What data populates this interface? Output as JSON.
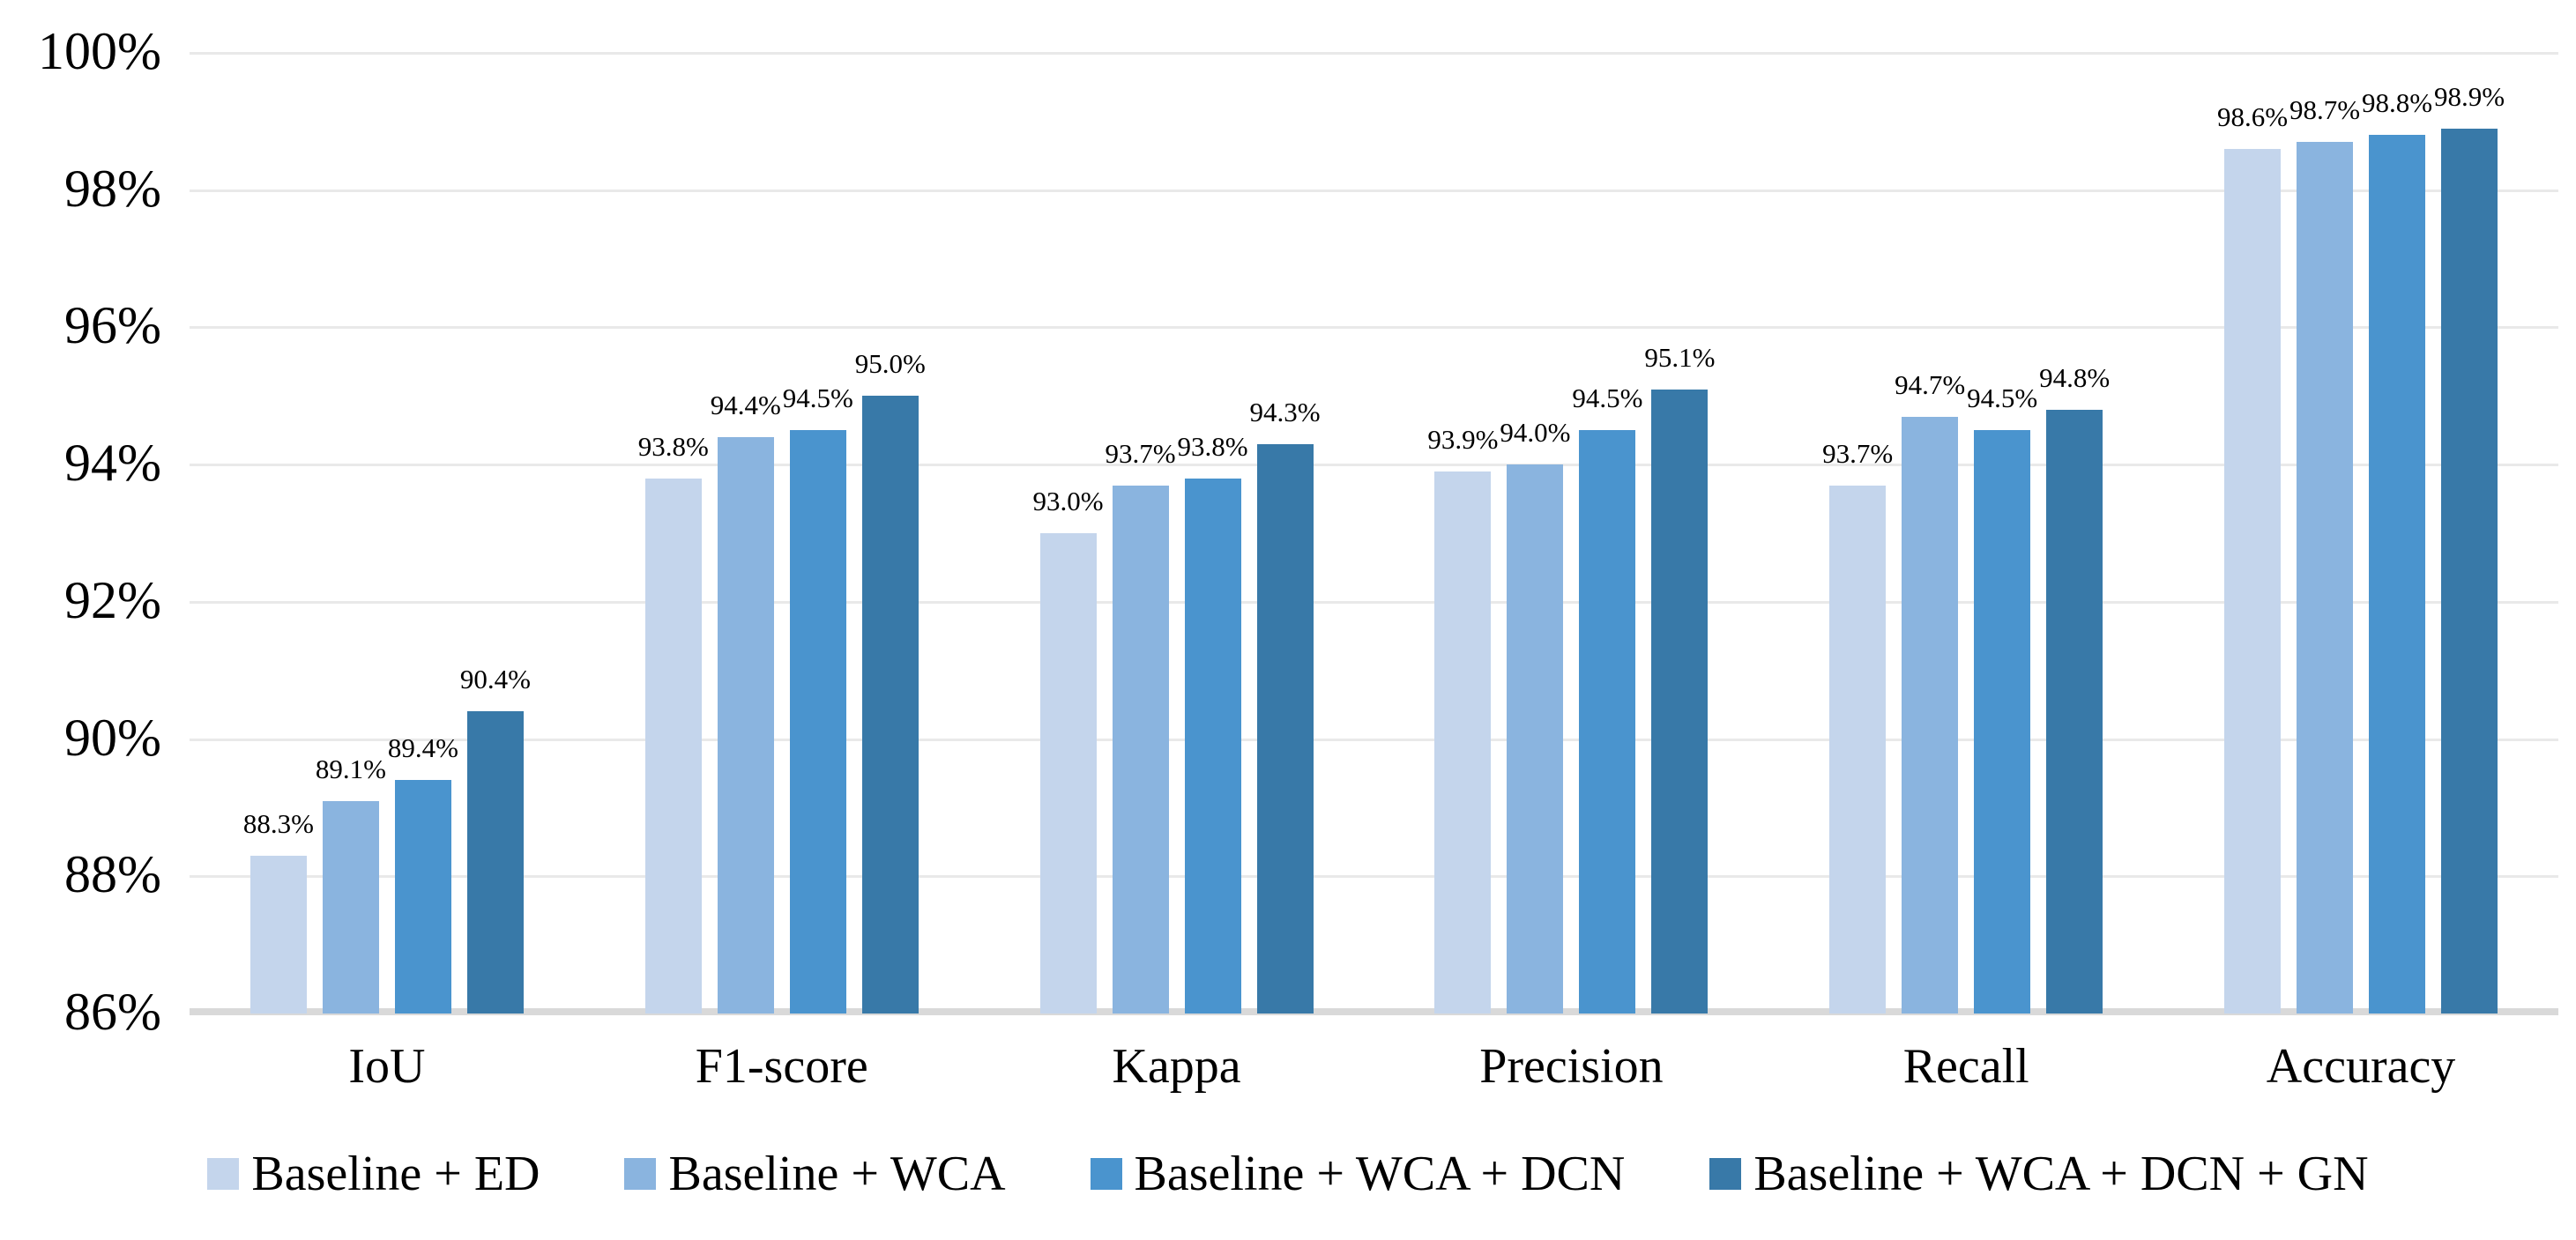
{
  "chart_data": {
    "type": "bar",
    "title": "",
    "categories": [
      "IoU",
      "F1-score",
      "Kappa",
      "Precision",
      "Recall",
      "Accuracy"
    ],
    "series": [
      {
        "name": "Baseline + ED",
        "color": "#C4D5EC",
        "values": [
          88.3,
          93.8,
          93.0,
          93.9,
          93.7,
          98.6
        ]
      },
      {
        "name": "Baseline + WCA",
        "color": "#8AB4DF",
        "values": [
          89.1,
          94.4,
          93.7,
          94.0,
          94.7,
          98.7
        ]
      },
      {
        "name": "Baseline + WCA + DCN",
        "color": "#4A94CE",
        "values": [
          89.4,
          94.5,
          93.8,
          94.5,
          94.5,
          98.8
        ]
      },
      {
        "name": "Baseline + WCA + DCN + GN",
        "color": "#3879A8",
        "values": [
          90.4,
          95.0,
          94.3,
          95.1,
          94.8,
          98.9
        ]
      }
    ],
    "y_axis": {
      "min": 86,
      "max": 100,
      "step": 2,
      "tick_labels": [
        "86%",
        "88%",
        "90%",
        "92%",
        "94%",
        "96%",
        "98%",
        "100%"
      ]
    },
    "value_label_suffix": "%",
    "value_label_decimals": 1,
    "grid": true,
    "legend_position": "bottom",
    "colors": {
      "gridline": "#E9E9E9",
      "axis_line": "#D9D9D9",
      "text": "#000000",
      "background": "#FFFFFF"
    }
  }
}
